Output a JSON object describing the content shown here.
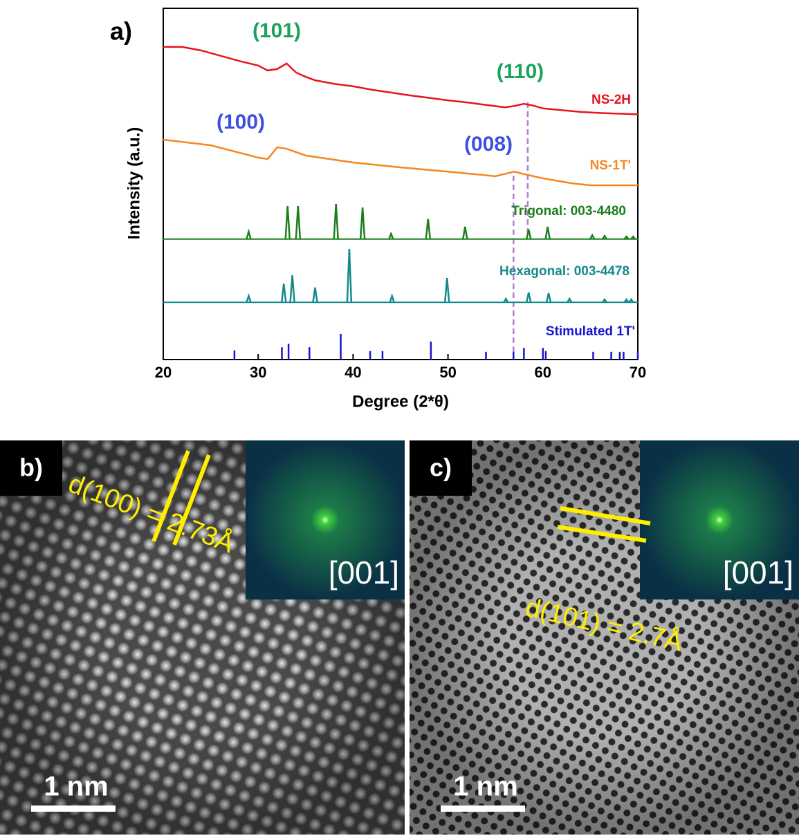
{
  "chart_data": {
    "type": "line",
    "panel_label": "a)",
    "xlabel": "Degree (2*θ)",
    "ylabel": "Intensity (a.u.)",
    "xlim": [
      20,
      70
    ],
    "xticks": [
      20,
      30,
      40,
      50,
      60,
      70
    ],
    "ylim": [
      0,
      100
    ],
    "reference_lines": [
      58.4,
      56.9
    ],
    "reference_color": "#b57bd6",
    "annotations": [
      {
        "text": "(101)",
        "color": "#1aa35a"
      },
      {
        "text": "(110)",
        "color": "#1aa35a"
      },
      {
        "text": "(100)",
        "color": "#3c4fe0"
      },
      {
        "text": "(008)",
        "color": "#3c4fe0"
      }
    ],
    "series": [
      {
        "name": "NS-2H",
        "color": "#e8141b",
        "type": "line",
        "x": [
          20,
          22,
          24,
          26,
          28,
          30,
          31,
          32,
          33,
          34,
          35,
          36,
          38,
          40,
          42,
          44,
          46,
          48,
          50,
          52,
          54,
          56,
          57,
          58,
          59,
          60,
          62,
          64,
          66,
          68,
          70
        ],
        "values": [
          89,
          89,
          88,
          86.5,
          85,
          83.7,
          82.3,
          82.7,
          84.3,
          81.7,
          80.5,
          79.5,
          78.5,
          77.8,
          76.8,
          76,
          75.2,
          74.5,
          73.8,
          73.2,
          72.5,
          71.8,
          72.2,
          72.8,
          72.3,
          71.5,
          71,
          70.5,
          70.2,
          70,
          69.8
        ]
      },
      {
        "name": "NS-1T'",
        "color": "#f6861f",
        "type": "line",
        "x": [
          20,
          25,
          30,
          31,
          32,
          33,
          35,
          40,
          45,
          50,
          55,
          57,
          58,
          60,
          63,
          65,
          70
        ],
        "values": [
          62.6,
          61,
          57.5,
          57.1,
          60.4,
          60,
          58.1,
          56.1,
          54.7,
          53.5,
          52.2,
          53.5,
          52.8,
          51.6,
          50.2,
          49.6,
          49.6
        ]
      },
      {
        "name": "Trigonal: 003-4480",
        "color": "#1b7f1b",
        "type": "stem",
        "baseline": 34.3,
        "x": [
          29,
          33.1,
          34.2,
          38.2,
          41,
          44,
          47.9,
          51.8,
          58.5,
          60.5,
          65.2,
          66.5,
          68.8,
          69.5
        ],
        "values": [
          36.4,
          43.7,
          43.7,
          44.3,
          43.3,
          35.8,
          40,
          37.8,
          37,
          37.8,
          35.4,
          35.2,
          35,
          35
        ]
      },
      {
        "name": "Hexagonal: 003-4478",
        "color": "#158a8a",
        "type": "stem",
        "baseline": 16.3,
        "x": [
          29,
          32.7,
          33.6,
          36,
          39.6,
          44.1,
          49.9,
          56.1,
          58.5,
          60.6,
          62.8,
          66.5,
          68.8,
          69.3
        ],
        "values": [
          18.1,
          21.6,
          24,
          20.5,
          31.5,
          18.1,
          23.2,
          17.3,
          19.1,
          18.9,
          17.3,
          17.1,
          17.1,
          17.1
        ]
      },
      {
        "name": "Stimulated 1T'",
        "color": "#1515d0",
        "type": "stick",
        "baseline": 0,
        "x": [
          27.5,
          32.5,
          33.2,
          35.4,
          38.7,
          41.8,
          43.1,
          48.2,
          54,
          56.9,
          58,
          60,
          60.3,
          65.3,
          67.2,
          68.1,
          68.5,
          70
        ],
        "values": [
          2.6,
          3.5,
          4.5,
          3.5,
          7.3,
          2.4,
          2.4,
          5.1,
          2.2,
          2.2,
          3.3,
          3.3,
          2.4,
          2.2,
          2.2,
          2.2,
          2.2,
          2.2
        ]
      }
    ]
  },
  "images": [
    {
      "label": "b)",
      "inset_label": "[001]",
      "measurement": "d(100) = 2.73Å",
      "scale_bar": "1 nm"
    },
    {
      "label": "c)",
      "inset_label": "[001]",
      "measurement": "d(101) = 2.7Å",
      "scale_bar": "1 nm"
    }
  ]
}
